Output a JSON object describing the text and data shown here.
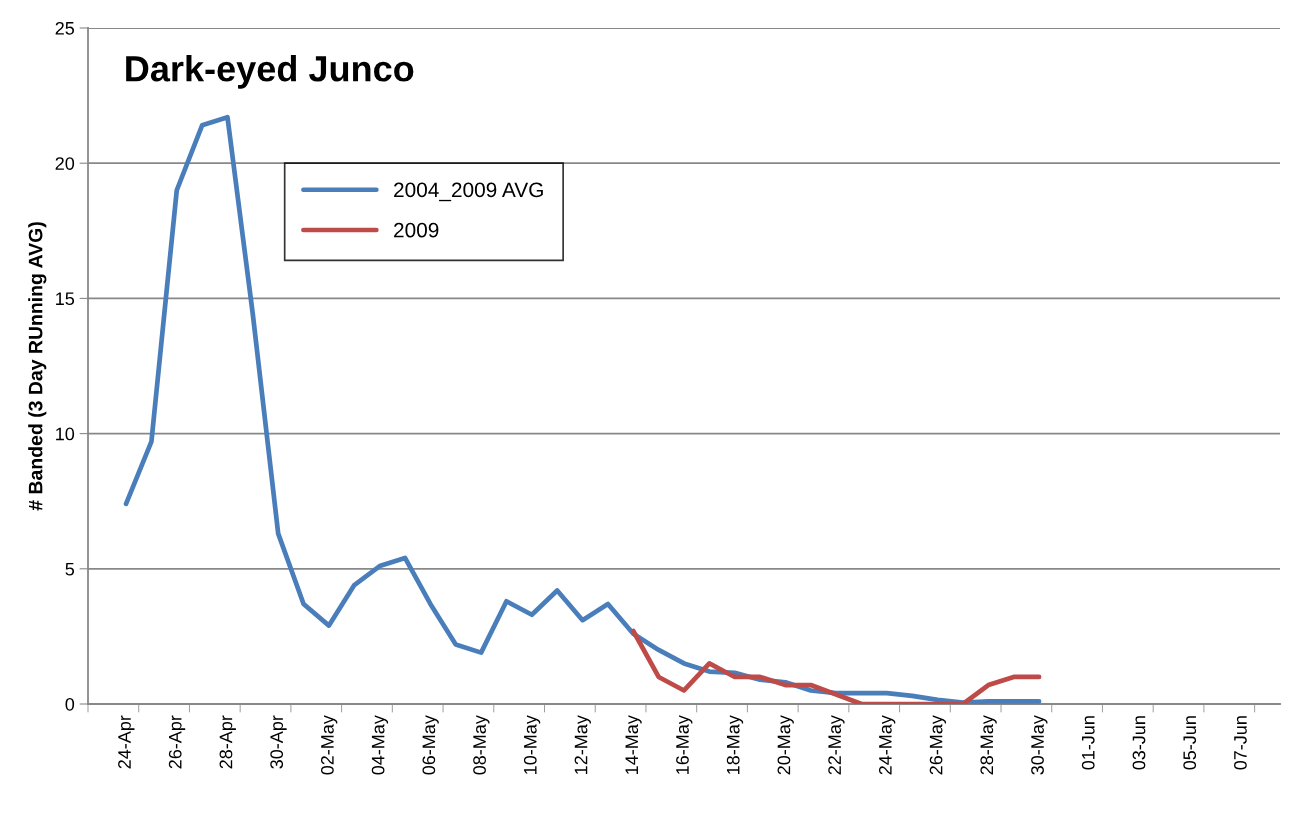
{
  "chart_data": {
    "type": "line",
    "title": "Dark-eyed Junco",
    "ylabel": "# Banded (3 Day RUnning AVG)",
    "categories": [
      null,
      "24-Apr",
      null,
      "26-Apr",
      null,
      "28-Apr",
      null,
      "30-Apr",
      null,
      "02-May",
      null,
      "04-May",
      null,
      "06-May",
      null,
      "08-May",
      null,
      "10-May",
      null,
      "12-May",
      null,
      "14-May",
      null,
      "16-May",
      null,
      "18-May",
      null,
      "20-May",
      null,
      "22-May",
      null,
      "24-May",
      null,
      "26-May",
      null,
      "28-May",
      null,
      "30-May",
      null,
      "01-Jun",
      null,
      "03-Jun",
      null,
      "05-Jun",
      null,
      "07-Jun",
      null
    ],
    "series": [
      {
        "name": "2004_2009 AVG",
        "color": "#4a7ebb",
        "values": [
          null,
          7.4,
          9.7,
          19.0,
          21.4,
          21.7,
          14.4,
          6.3,
          3.7,
          2.9,
          4.4,
          5.1,
          5.4,
          3.7,
          2.2,
          1.9,
          3.8,
          3.3,
          4.2,
          3.1,
          3.7,
          2.6,
          2.0,
          1.5,
          1.2,
          1.15,
          0.9,
          0.8,
          0.5,
          0.4,
          0.4,
          0.4,
          0.3,
          0.15,
          0.05,
          0.1,
          0.1,
          0.1,
          null,
          null,
          null,
          null,
          null,
          null,
          null,
          null,
          null
        ]
      },
      {
        "name": "2009",
        "color": "#be4b48",
        "values": [
          null,
          null,
          null,
          null,
          null,
          null,
          null,
          null,
          null,
          null,
          null,
          null,
          null,
          null,
          null,
          null,
          null,
          null,
          null,
          null,
          null,
          2.7,
          1.0,
          0.5,
          1.5,
          1.0,
          1.0,
          0.7,
          0.7,
          0.35,
          0,
          0,
          0,
          0,
          0,
          0.7,
          1.0,
          1.0,
          null,
          null,
          null,
          null,
          null,
          null,
          null,
          null,
          null
        ]
      }
    ],
    "ylim": [
      0,
      25
    ],
    "yticks": [
      0,
      5,
      10,
      15,
      20,
      25
    ],
    "grid": "y",
    "legend": "top left",
    "marker": "none",
    "line_style": "solid"
  }
}
